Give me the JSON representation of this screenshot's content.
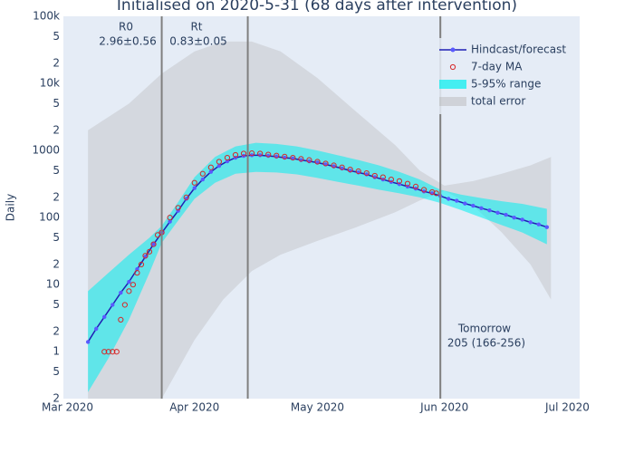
{
  "chart_data": {
    "type": "line",
    "title": "Initialised on 2020-5-31 (68 days after intervention)",
    "y_label": "Daily",
    "log_y": true,
    "grid": true,
    "legend": "top-right",
    "xlim": [
      "2020-02-29",
      "2020-07-04"
    ],
    "xticks": [
      {
        "value": "2020-03-01",
        "label": "Mar 2020"
      },
      {
        "value": "2020-04-01",
        "label": "Apr 2020"
      },
      {
        "value": "2020-05-01",
        "label": "May 2020"
      },
      {
        "value": "2020-06-01",
        "label": "Jun 2020"
      },
      {
        "value": "2020-07-01",
        "label": "Jul 2020"
      }
    ],
    "ylim": [
      0.2,
      100000
    ],
    "yticks": [
      {
        "value": 100000,
        "label": "100k"
      },
      {
        "value": 50000,
        "label": "5"
      },
      {
        "value": 20000,
        "label": "2"
      },
      {
        "value": 10000,
        "label": "10k"
      },
      {
        "value": 5000,
        "label": "5"
      },
      {
        "value": 2000,
        "label": "2"
      },
      1000,
      {
        "value": 500,
        "label": "5"
      },
      {
        "value": 200,
        "label": "2"
      },
      100,
      {
        "value": 50,
        "label": "5"
      },
      {
        "value": 20,
        "label": "2"
      },
      10,
      5,
      2,
      1,
      {
        "value": 0.5,
        "label": "5"
      },
      {
        "value": 0.2,
        "label": "2"
      }
    ],
    "vlines": [
      "2020-03-24",
      "2020-04-14",
      "2020-05-31"
    ],
    "annotations": [
      {
        "text": "R0"
      },
      {
        "text": "2.96±0.56"
      },
      {
        "text": "Rt"
      },
      {
        "text": "0.83±0.05"
      },
      {
        "text": "Tomorrow"
      },
      {
        "text": "205 (166-256)"
      }
    ],
    "series": [
      {
        "name": "Hindcast/forecast",
        "kind": "line",
        "color": "#1f1fb4",
        "marker_color": "#5a5aff",
        "x": [
          "2020-03-06",
          "2020-03-08",
          "2020-03-10",
          "2020-03-12",
          "2020-03-14",
          "2020-03-16",
          "2020-03-18",
          "2020-03-20",
          "2020-03-22",
          "2020-03-24",
          "2020-03-26",
          "2020-03-28",
          "2020-03-30",
          "2020-04-01",
          "2020-04-03",
          "2020-04-05",
          "2020-04-07",
          "2020-04-09",
          "2020-04-11",
          "2020-04-13",
          "2020-04-15",
          "2020-04-17",
          "2020-04-19",
          "2020-04-21",
          "2020-04-23",
          "2020-04-25",
          "2020-04-27",
          "2020-04-29",
          "2020-05-01",
          "2020-05-03",
          "2020-05-05",
          "2020-05-07",
          "2020-05-09",
          "2020-05-11",
          "2020-05-13",
          "2020-05-15",
          "2020-05-17",
          "2020-05-19",
          "2020-05-21",
          "2020-05-23",
          "2020-05-25",
          "2020-05-27",
          "2020-05-29",
          "2020-05-31",
          "2020-06-02",
          "2020-06-04",
          "2020-06-06",
          "2020-06-08",
          "2020-06-10",
          "2020-06-12",
          "2020-06-14",
          "2020-06-16",
          "2020-06-18",
          "2020-06-20",
          "2020-06-22",
          "2020-06-24",
          "2020-06-26"
        ],
        "values": [
          1.4,
          2.2,
          3.3,
          5.0,
          7.6,
          11,
          17,
          26,
          40,
          59,
          87,
          126,
          190,
          275,
          370,
          480,
          590,
          690,
          780,
          830,
          850,
          850,
          830,
          810,
          780,
          760,
          720,
          690,
          660,
          620,
          580,
          540,
          500,
          470,
          440,
          400,
          370,
          340,
          315,
          290,
          270,
          245,
          230,
          210,
          190,
          178,
          162,
          150,
          138,
          128,
          118,
          110,
          100,
          93,
          85,
          79,
          72
        ]
      },
      {
        "name": "7-day MA",
        "kind": "markers",
        "color": "#d62728",
        "x": [
          "2020-03-10",
          "2020-03-11",
          "2020-03-12",
          "2020-03-13",
          "2020-03-14",
          "2020-03-15",
          "2020-03-16",
          "2020-03-17",
          "2020-03-18",
          "2020-03-19",
          "2020-03-20",
          "2020-03-21",
          "2020-03-22",
          "2020-03-23",
          "2020-03-24",
          "2020-03-26",
          "2020-03-28",
          "2020-03-30",
          "2020-04-01",
          "2020-04-03",
          "2020-04-05",
          "2020-04-07",
          "2020-04-09",
          "2020-04-11",
          "2020-04-13",
          "2020-04-15",
          "2020-04-17",
          "2020-04-19",
          "2020-04-21",
          "2020-04-23",
          "2020-04-25",
          "2020-04-27",
          "2020-04-29",
          "2020-05-01",
          "2020-05-03",
          "2020-05-05",
          "2020-05-07",
          "2020-05-09",
          "2020-05-11",
          "2020-05-13",
          "2020-05-15",
          "2020-05-17",
          "2020-05-19",
          "2020-05-21",
          "2020-05-23",
          "2020-05-25",
          "2020-05-27",
          "2020-05-29",
          "2020-05-30"
        ],
        "values": [
          1,
          1,
          1,
          1,
          3,
          5,
          8,
          10,
          15,
          20,
          27,
          31,
          40,
          55,
          60,
          100,
          140,
          200,
          330,
          450,
          560,
          680,
          780,
          860,
          900,
          910,
          900,
          870,
          840,
          810,
          780,
          750,
          720,
          680,
          640,
          600,
          560,
          520,
          490,
          460,
          420,
          400,
          370,
          350,
          320,
          290,
          260,
          240,
          230
        ]
      },
      {
        "name": "5-95% range",
        "kind": "band",
        "color": "#00f0f0",
        "x": [
          "2020-03-06",
          "2020-03-11",
          "2020-03-16",
          "2020-03-21",
          "2020-03-24",
          "2020-03-28",
          "2020-04-01",
          "2020-04-06",
          "2020-04-11",
          "2020-04-16",
          "2020-04-21",
          "2020-04-26",
          "2020-05-01",
          "2020-05-06",
          "2020-05-11",
          "2020-05-16",
          "2020-05-21",
          "2020-05-26",
          "2020-05-31",
          "2020-06-05",
          "2020-06-10",
          "2020-06-15",
          "2020-06-20",
          "2020-06-26"
        ],
        "low": [
          0.25,
          0.8,
          3,
          15,
          42,
          90,
          190,
          330,
          450,
          480,
          470,
          440,
          390,
          340,
          300,
          260,
          230,
          200,
          165,
          130,
          100,
          77,
          60,
          40
        ],
        "high": [
          8,
          15,
          28,
          50,
          75,
          170,
          400,
          800,
          1150,
          1300,
          1250,
          1150,
          1000,
          850,
          720,
          600,
          480,
          370,
          260,
          220,
          195,
          175,
          160,
          135
        ]
      },
      {
        "name": "total error",
        "kind": "band",
        "color": "#b4b4b4",
        "x": [
          "2020-03-06",
          "2020-03-16",
          "2020-03-24",
          "2020-04-01",
          "2020-04-08",
          "2020-04-15",
          "2020-04-22",
          "2020-05-01",
          "2020-05-10",
          "2020-05-20",
          "2020-05-26",
          "2020-06-01",
          "2020-06-08",
          "2020-06-15",
          "2020-06-22",
          "2020-06-27"
        ],
        "low": [
          0.05,
          0.05,
          0.2,
          1.5,
          6,
          16,
          28,
          45,
          70,
          120,
          180,
          250,
          150,
          60,
          20,
          6
        ],
        "high": [
          2000,
          5000,
          14000,
          30000,
          42000,
          42000,
          30000,
          12000,
          4000,
          1200,
          500,
          300,
          350,
          450,
          600,
          800
        ]
      }
    ]
  }
}
